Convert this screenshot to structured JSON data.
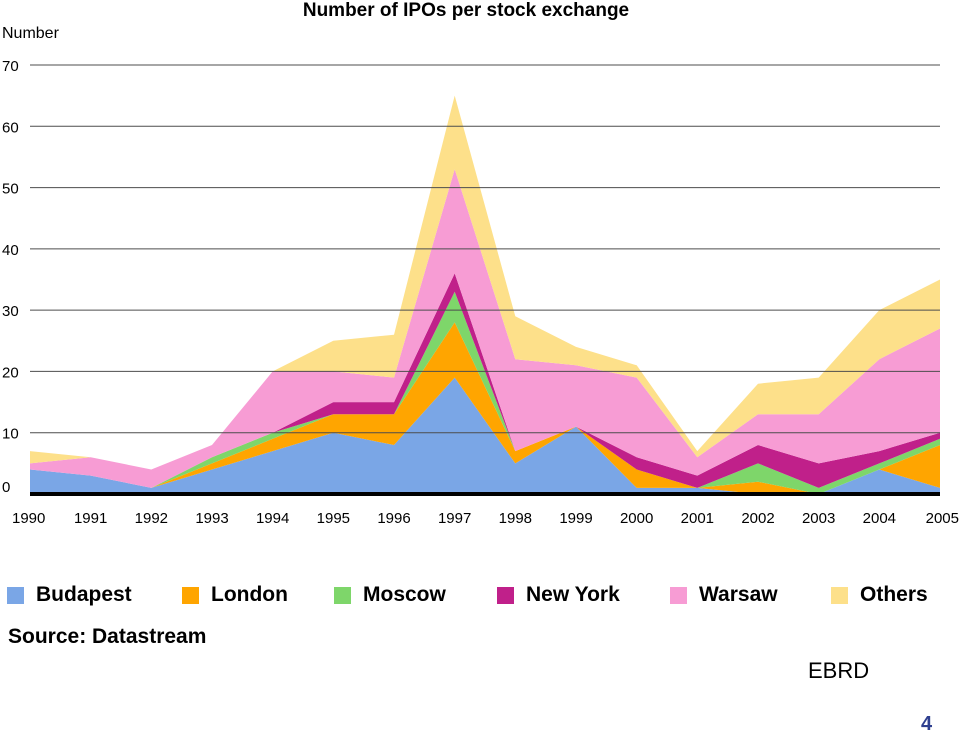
{
  "chart_data": {
    "type": "area",
    "stacked": true,
    "title": "Number of IPOs per stock exchange",
    "ylabel": "Number",
    "xlabel": "",
    "x": [
      1990,
      1991,
      1992,
      1993,
      1994,
      1995,
      1996,
      1997,
      1998,
      1999,
      2000,
      2001,
      2002,
      2003,
      2004,
      2005
    ],
    "ylim": [
      0,
      70
    ],
    "yticks": [
      0,
      10,
      20,
      30,
      40,
      50,
      60,
      70
    ],
    "grid": "horizontal",
    "legend_position": "bottom",
    "series": [
      {
        "name": "Budapest",
        "color": "#7aa6e6",
        "values": [
          4,
          3,
          1,
          4,
          7,
          10,
          8,
          19,
          5,
          11,
          1,
          1,
          0,
          0,
          4,
          1
        ]
      },
      {
        "name": "London",
        "color": "#ffa500",
        "values": [
          0,
          0,
          0,
          1,
          2,
          3,
          5,
          9,
          2,
          0,
          3,
          0,
          2,
          0,
          0,
          7
        ]
      },
      {
        "name": "Moscow",
        "color": "#7ed66a",
        "values": [
          0,
          0,
          0,
          1,
          1,
          0,
          0,
          5,
          0,
          0,
          0,
          0,
          3,
          1,
          1,
          1
        ]
      },
      {
        "name": "New York",
        "color": "#c0208a",
        "values": [
          0,
          0,
          0,
          0,
          0,
          2,
          2,
          3,
          0,
          0,
          2,
          2,
          3,
          4,
          2,
          1
        ]
      },
      {
        "name": "Warsaw",
        "color": "#f79cd4",
        "values": [
          1,
          3,
          3,
          2,
          10,
          5,
          4,
          17,
          15,
          10,
          13,
          3,
          5,
          8,
          15,
          17
        ]
      },
      {
        "name": "Others",
        "color": "#fde08a",
        "values": [
          2,
          0,
          0,
          0,
          0,
          5,
          7,
          12,
          7,
          3,
          2,
          1,
          5,
          6,
          8,
          8
        ]
      }
    ]
  },
  "footer": {
    "source": "Source: Datastream",
    "brand": "EBRD",
    "page_number": "4"
  }
}
